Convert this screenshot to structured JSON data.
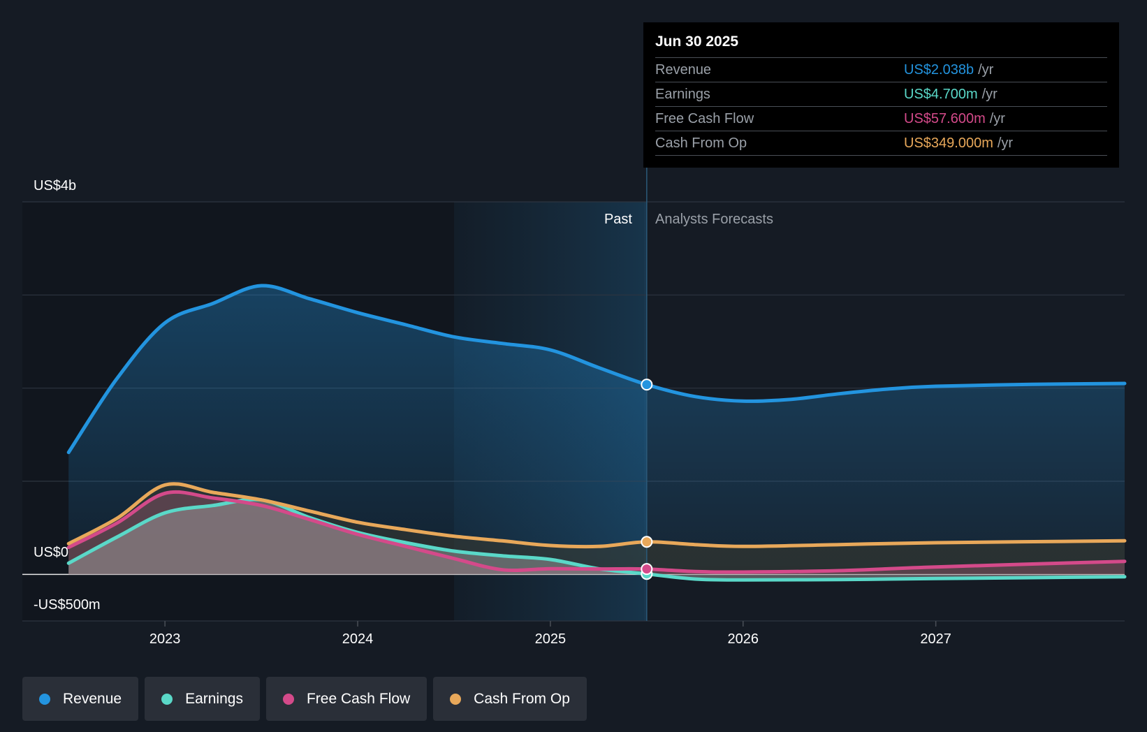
{
  "chart_data": {
    "type": "line",
    "x_ticks": [
      "2023",
      "2024",
      "2025",
      "2026",
      "2027"
    ],
    "xlim": [
      2022.26,
      2027.98
    ],
    "ylim": [
      -500,
      4000
    ],
    "y_labels": {
      "top": "US$4b",
      "zero": "US$0",
      "bottom": "-US$500m"
    },
    "sections": {
      "past": "Past",
      "forecast": "Analysts Forecasts"
    },
    "past_end": 2025.5,
    "highlight_start": 2024.5,
    "series": [
      {
        "name": "Revenue",
        "color": "#2394df",
        "points": [
          [
            2022.5,
            1310
          ],
          [
            2022.75,
            2100
          ],
          [
            2023.0,
            2700
          ],
          [
            2023.25,
            2910
          ],
          [
            2023.5,
            3100
          ],
          [
            2023.75,
            2960
          ],
          [
            2024.0,
            2810
          ],
          [
            2024.25,
            2680
          ],
          [
            2024.5,
            2550
          ],
          [
            2024.75,
            2480
          ],
          [
            2025.0,
            2410
          ],
          [
            2025.25,
            2220
          ],
          [
            2025.5,
            2038
          ],
          [
            2025.75,
            1910
          ],
          [
            2026.0,
            1860
          ],
          [
            2026.25,
            1880
          ],
          [
            2026.5,
            1940
          ],
          [
            2026.75,
            1990
          ],
          [
            2027.0,
            2020
          ],
          [
            2027.5,
            2040
          ],
          [
            2027.98,
            2050
          ]
        ]
      },
      {
        "name": "Earnings",
        "color": "#5ad8c8",
        "points": [
          [
            2022.5,
            120
          ],
          [
            2022.75,
            400
          ],
          [
            2023.0,
            660
          ],
          [
            2023.25,
            740
          ],
          [
            2023.5,
            800
          ],
          [
            2023.75,
            610
          ],
          [
            2024.0,
            450
          ],
          [
            2024.25,
            340
          ],
          [
            2024.5,
            250
          ],
          [
            2024.75,
            200
          ],
          [
            2025.0,
            160
          ],
          [
            2025.25,
            60
          ],
          [
            2025.5,
            4.7
          ],
          [
            2025.75,
            -50
          ],
          [
            2026.0,
            -60
          ],
          [
            2026.5,
            -55
          ],
          [
            2027.0,
            -45
          ],
          [
            2027.98,
            -25
          ]
        ]
      },
      {
        "name": "Free Cash Flow",
        "color": "#d44a8a",
        "points": [
          [
            2022.5,
            290
          ],
          [
            2022.75,
            550
          ],
          [
            2023.0,
            870
          ],
          [
            2023.25,
            820
          ],
          [
            2023.5,
            740
          ],
          [
            2023.75,
            590
          ],
          [
            2024.0,
            430
          ],
          [
            2024.25,
            300
          ],
          [
            2024.5,
            170
          ],
          [
            2024.75,
            50
          ],
          [
            2025.0,
            60
          ],
          [
            2025.25,
            58
          ],
          [
            2025.5,
            57.6
          ],
          [
            2025.75,
            30
          ],
          [
            2026.0,
            25
          ],
          [
            2026.5,
            40
          ],
          [
            2027.0,
            80
          ],
          [
            2027.98,
            140
          ]
        ]
      },
      {
        "name": "Cash From Op",
        "color": "#e8a85a",
        "points": [
          [
            2022.5,
            330
          ],
          [
            2022.75,
            600
          ],
          [
            2023.0,
            960
          ],
          [
            2023.25,
            880
          ],
          [
            2023.5,
            800
          ],
          [
            2023.75,
            680
          ],
          [
            2024.0,
            560
          ],
          [
            2024.25,
            480
          ],
          [
            2024.5,
            410
          ],
          [
            2024.75,
            360
          ],
          [
            2025.0,
            310
          ],
          [
            2025.25,
            300
          ],
          [
            2025.5,
            349
          ],
          [
            2025.75,
            320
          ],
          [
            2026.0,
            300
          ],
          [
            2026.5,
            320
          ],
          [
            2027.0,
            340
          ],
          [
            2027.98,
            360
          ]
        ]
      }
    ]
  },
  "tooltip": {
    "date": "Jun 30 2025",
    "unit": "/yr",
    "rows": [
      {
        "name": "Revenue",
        "value": "US$2.038b",
        "color": "#2394df"
      },
      {
        "name": "Earnings",
        "value": "US$4.700m",
        "color": "#5ad8c8"
      },
      {
        "name": "Free Cash Flow",
        "value": "US$57.600m",
        "color": "#d44a8a"
      },
      {
        "name": "Cash From Op",
        "value": "US$349.000m",
        "color": "#e8a85a"
      }
    ]
  },
  "legend": [
    {
      "label": "Revenue",
      "color": "#2394df"
    },
    {
      "label": "Earnings",
      "color": "#5ad8c8"
    },
    {
      "label": "Free Cash Flow",
      "color": "#d44a8a"
    },
    {
      "label": "Cash From Op",
      "color": "#e8a85a"
    }
  ]
}
